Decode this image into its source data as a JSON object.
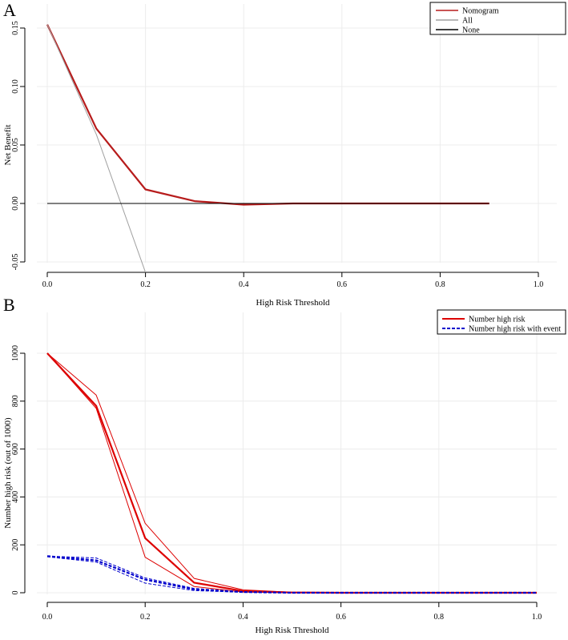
{
  "panels": {
    "a_letter": "A",
    "b_letter": "B"
  },
  "chart_data": [
    {
      "type": "line",
      "panel": "A",
      "title": "",
      "xlabel": "High Risk Threshold",
      "ylabel": "Net Benefit",
      "xlim": [
        0.0,
        1.0
      ],
      "ylim": [
        -0.05,
        0.15
      ],
      "xticks": [
        0.0,
        0.2,
        0.4,
        0.6,
        0.8,
        1.0
      ],
      "xtick_labels": [
        "0.0",
        "0.2",
        "0.4",
        "0.6",
        "0.8",
        "1.0"
      ],
      "yticks": [
        -0.05,
        0.0,
        0.05,
        0.1,
        0.15
      ],
      "ytick_labels": [
        "-0.05",
        "0.00",
        "0.05",
        "0.10",
        "0.15"
      ],
      "grid": true,
      "legend_position": "top-right",
      "series": [
        {
          "name": "Nomogram",
          "color": "#b71c1c",
          "style": "solid",
          "weight": "thick",
          "x": [
            0.0,
            0.1,
            0.2,
            0.3,
            0.4,
            0.5,
            0.6,
            0.7,
            0.8,
            0.9
          ],
          "y": [
            0.153,
            0.064,
            0.012,
            0.002,
            -0.001,
            0.0,
            0.0,
            0.0,
            0.0,
            0.0
          ]
        },
        {
          "name": "All",
          "color": "#a0a0a0",
          "style": "solid",
          "weight": "thin",
          "x": [
            0.0,
            0.1,
            0.2
          ],
          "y": [
            0.153,
            0.059,
            -0.059
          ]
        },
        {
          "name": "None",
          "color": "#000000",
          "style": "solid",
          "weight": "thin",
          "x": [
            0.0,
            0.9
          ],
          "y": [
            0.0,
            0.0
          ]
        }
      ]
    },
    {
      "type": "line",
      "panel": "B",
      "title": "",
      "xlabel": "High Risk Threshold",
      "ylabel": "Number high risk (out of 1000)",
      "xlim": [
        0.0,
        1.0
      ],
      "ylim": [
        0,
        1000
      ],
      "xticks": [
        0.0,
        0.2,
        0.4,
        0.6,
        0.8,
        1.0
      ],
      "xtick_labels": [
        "0.0",
        "0.2",
        "0.4",
        "0.6",
        "0.8",
        "1.0"
      ],
      "yticks": [
        0,
        200,
        400,
        600,
        800,
        1000
      ],
      "ytick_labels": [
        "0",
        "200",
        "400",
        "600",
        "800",
        "1000"
      ],
      "grid": true,
      "legend_position": "top-right",
      "legend": [
        {
          "name": "Number high risk",
          "color": "#dd0000",
          "style": "solid"
        },
        {
          "name": "Number high risk with event",
          "color": "#0000cc",
          "style": "dashed"
        }
      ],
      "series": [
        {
          "name": "Number high risk",
          "color": "#dd0000",
          "style": "solid",
          "weight": "thick",
          "x": [
            0.0,
            0.1,
            0.2,
            0.3,
            0.4,
            0.5,
            0.6,
            0.7,
            0.8,
            0.9,
            1.0
          ],
          "y": [
            1000,
            780,
            228,
            42,
            7,
            1,
            0,
            0,
            0,
            0,
            0
          ]
        },
        {
          "name": "Number high risk (CI upper)",
          "color": "#dd0000",
          "style": "solid",
          "weight": "thin",
          "x": [
            0.0,
            0.1,
            0.2,
            0.3,
            0.4,
            0.5,
            0.6,
            0.7,
            0.8,
            0.9,
            1.0
          ],
          "y": [
            1000,
            825,
            290,
            60,
            12,
            2,
            0,
            0,
            0,
            0,
            0
          ]
        },
        {
          "name": "Number high risk (CI lower)",
          "color": "#dd0000",
          "style": "solid",
          "weight": "thin",
          "x": [
            0.0,
            0.1,
            0.2,
            0.3,
            0.4,
            0.5,
            0.6,
            0.7,
            0.8,
            0.9,
            1.0
          ],
          "y": [
            1000,
            770,
            148,
            26,
            3,
            0,
            0,
            0,
            0,
            0,
            0
          ]
        },
        {
          "name": "Number high risk with event",
          "color": "#0000cc",
          "style": "dashed",
          "weight": "thick",
          "x": [
            0.0,
            0.1,
            0.2,
            0.3,
            0.4,
            0.5,
            0.6,
            0.7,
            0.8,
            0.9,
            1.0
          ],
          "y": [
            153,
            135,
            55,
            14,
            3,
            0,
            0,
            0,
            0,
            0,
            0
          ]
        },
        {
          "name": "Number high risk with event (CI upper)",
          "color": "#0000cc",
          "style": "dashed",
          "weight": "thin",
          "x": [
            0.0,
            0.1,
            0.2,
            0.3,
            0.4,
            0.5,
            0.6,
            0.7,
            0.8,
            0.9,
            1.0
          ],
          "y": [
            153,
            145,
            62,
            18,
            4,
            0,
            0,
            0,
            0,
            0,
            0
          ]
        },
        {
          "name": "Number high risk with event (CI lower)",
          "color": "#0000cc",
          "style": "dashed",
          "weight": "thin",
          "x": [
            0.0,
            0.1,
            0.2,
            0.3,
            0.4,
            0.5,
            0.6,
            0.7,
            0.8,
            0.9,
            1.0
          ],
          "y": [
            150,
            128,
            40,
            9,
            2,
            0,
            0,
            0,
            0,
            0,
            0
          ]
        }
      ]
    }
  ]
}
